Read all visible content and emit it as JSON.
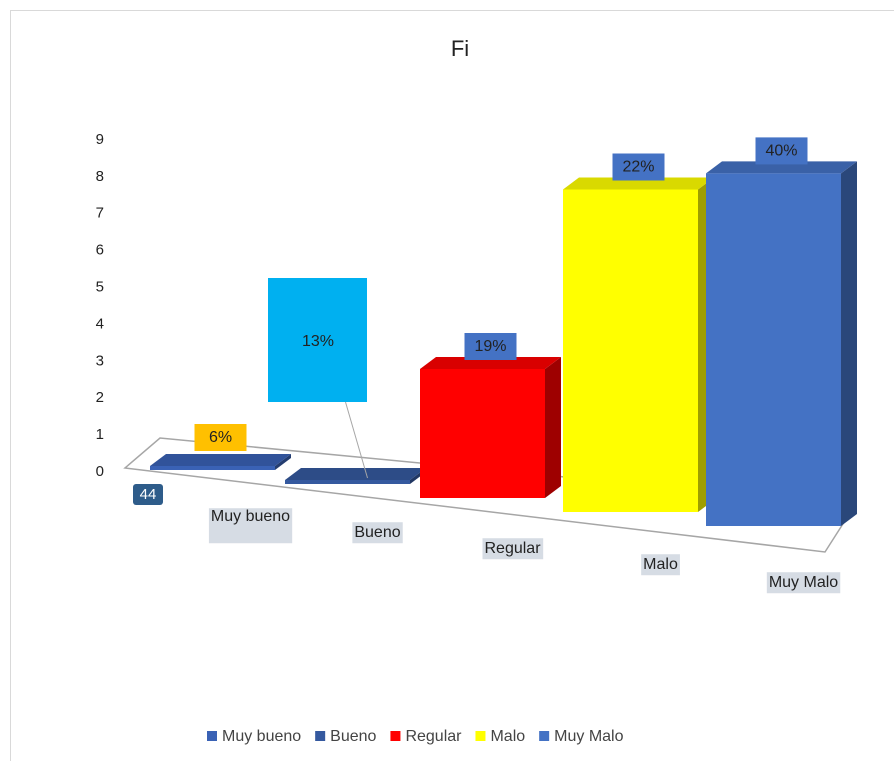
{
  "chart_data": {
    "type": "bar3d",
    "title": "Fi",
    "categories": [
      "Muy bueno",
      "Bueno",
      "Regular",
      "Malo",
      "Muy Malo"
    ],
    "series": [
      {
        "name": "Fi",
        "values": [
          0,
          0,
          3,
          7.5,
          8.2
        ]
      }
    ],
    "colors": [
      "#3a62b5",
      "#35599f",
      "#ff0000",
      "#ffff00",
      "#4472c4"
    ],
    "data_labels": [
      "6%",
      "13%",
      "19%",
      "22%",
      "40%"
    ],
    "annotation": "44",
    "ylim": [
      0,
      9
    ],
    "yticks": [
      0,
      1,
      2,
      3,
      4,
      5,
      6,
      7,
      8,
      9
    ],
    "grid": false,
    "legend": "bottom"
  }
}
